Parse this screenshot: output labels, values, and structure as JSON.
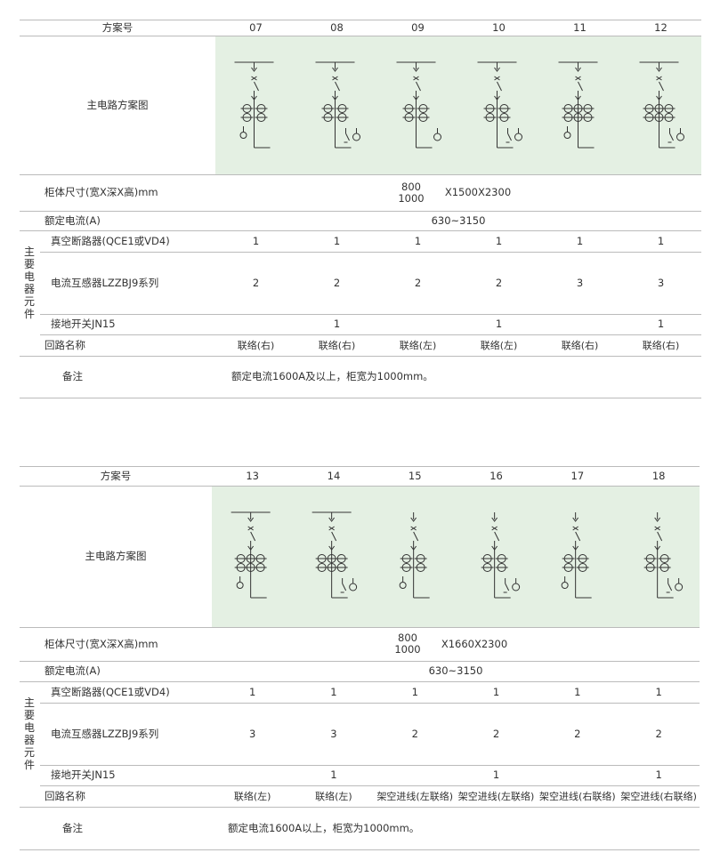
{
  "tables": [
    {
      "header": {
        "label": "方案号",
        "schemes": [
          "07",
          "08",
          "09",
          "10",
          "11",
          "12"
        ]
      },
      "diagram_label": "主电路方案图",
      "dimensions": {
        "label": "柜体尺寸(宽X深X高)mm",
        "widths": [
          "800",
          "1000"
        ],
        "rest": "X1500X2300"
      },
      "rated_current": {
        "label": "额定电流(A)",
        "value": "630~3150"
      },
      "components": {
        "group_label": "主要电器元件",
        "rows": [
          {
            "label": "真空断路器(QCE1或VD4)",
            "values": [
              "1",
              "1",
              "1",
              "1",
              "1",
              "1"
            ]
          },
          {
            "label": "电流互感器LZZBJ9系列",
            "values": [
              "2",
              "2",
              "2",
              "2",
              "3",
              "3"
            ]
          },
          {
            "label": "接地开关JN15",
            "values": [
              null,
              "1",
              null,
              "1",
              null,
              "1"
            ]
          }
        ]
      },
      "circuit_name": {
        "label": "回路名称",
        "values": [
          "联络(右)",
          "联络(右)",
          "联络(左)",
          "联络(左)",
          "联络(右)",
          "联络(右)"
        ]
      },
      "remarks": {
        "label": "备注",
        "text": "额定电流1600A及以上，柜宽为1000mm。"
      }
    },
    {
      "header": {
        "label": "方案号",
        "schemes": [
          "13",
          "14",
          "15",
          "16",
          "17",
          "18"
        ]
      },
      "diagram_label": "主电路方案图",
      "dimensions": {
        "label": "柜体尺寸(宽X深X高)mm",
        "widths": [
          "800",
          "1000"
        ],
        "rest": "X1660X2300"
      },
      "rated_current": {
        "label": "额定电流(A)",
        "value": "630~3150"
      },
      "components": {
        "group_label": "主要电器元件",
        "rows": [
          {
            "label": "真空断路器(QCE1或VD4)",
            "values": [
              "1",
              "1",
              "1",
              "1",
              "1",
              "1"
            ]
          },
          {
            "label": "电流互感器LZZBJ9系列",
            "values": [
              "3",
              "3",
              "2",
              "2",
              "2",
              "2"
            ]
          },
          {
            "label": "接地开关JN15",
            "values": [
              null,
              "1",
              null,
              "1",
              null,
              "1"
            ]
          }
        ]
      },
      "circuit_name": {
        "label": "回路名称",
        "values": [
          "联络(左)",
          "联络(左)",
          "架空进线(左联络)",
          "架空进线(左联络)",
          "架空进线(右联络)",
          "架空进线(右联络)"
        ]
      },
      "remarks": {
        "label": "备注",
        "text": "额定电流1600A以上，柜宽为1000mm。"
      }
    }
  ]
}
